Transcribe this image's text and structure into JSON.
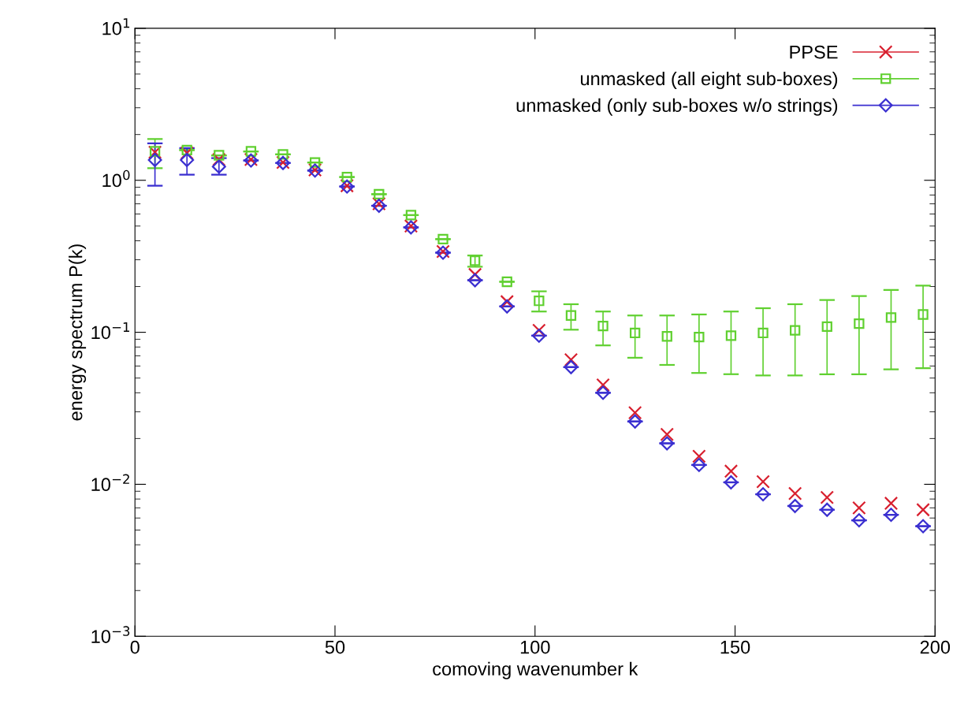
{
  "chart_data": {
    "type": "scatter",
    "xlabel": "comoving wavenumber k",
    "ylabel": "energy spectrum P(k)",
    "log": "y",
    "grid": false,
    "legend": "top right",
    "xlim": [
      0,
      200
    ],
    "xticks": [
      0,
      50,
      100,
      150,
      200
    ],
    "ylim": [
      0.001,
      10
    ],
    "yticks": [
      {
        "value": 0.001,
        "label": "10$^{−3}$"
      },
      {
        "value": 0.01,
        "label": "10$^{−2}$"
      },
      {
        "value": 0.1,
        "label": "10$^{−1}$"
      },
      {
        "value": 1,
        "label": "10$^{0}$"
      },
      {
        "value": 10,
        "label": "10$^{1}$"
      }
    ],
    "x": [
      5,
      13,
      21,
      29,
      37,
      45,
      53,
      61,
      69,
      77,
      85,
      93,
      101,
      109,
      117,
      125,
      133,
      141,
      149,
      157,
      165,
      173,
      181,
      189,
      197
    ],
    "series": [
      {
        "name": "PPSE",
        "color": "#d8202f",
        "marker": "cross",
        "values": [
          1.53,
          1.51,
          1.37,
          1.37,
          1.31,
          1.17,
          0.92,
          0.7,
          0.5,
          0.34,
          0.24,
          0.159,
          0.103,
          0.066,
          0.045,
          0.0296,
          0.0213,
          0.0153,
          0.0122,
          0.0104,
          0.0087,
          0.0082,
          0.007,
          0.0075,
          0.0068
        ]
      },
      {
        "name": "unmasked (all eight sub-boxes)",
        "color": "#60d030",
        "marker": "square",
        "values": [
          1.55,
          1.58,
          1.46,
          1.55,
          1.48,
          1.31,
          1.05,
          0.81,
          0.59,
          0.41,
          0.296,
          0.215,
          0.161,
          0.129,
          0.11,
          0.099,
          0.094,
          0.093,
          0.095,
          0.099,
          0.103,
          0.109,
          0.114,
          0.125,
          0.131
        ],
        "errors": [
          [
            1.2,
            1.87
          ],
          null,
          null,
          null,
          null,
          null,
          null,
          null,
          null,
          null,
          [
            0.27,
            0.32
          ],
          null,
          [
            0.137,
            0.186
          ],
          [
            0.104,
            0.153
          ],
          [
            0.082,
            0.137
          ],
          [
            0.068,
            0.129
          ],
          [
            0.061,
            0.129
          ],
          [
            0.054,
            0.131
          ],
          [
            0.053,
            0.137
          ],
          [
            0.052,
            0.144
          ],
          [
            0.052,
            0.153
          ],
          [
            0.053,
            0.163
          ],
          [
            0.053,
            0.173
          ],
          [
            0.057,
            0.19
          ],
          [
            0.058,
            0.203
          ]
        ]
      },
      {
        "name": "unmasked (only sub-boxes w/o strings)",
        "color": "#3a2fd0",
        "marker": "diamond",
        "values": [
          1.36,
          1.36,
          1.23,
          1.35,
          1.3,
          1.16,
          0.91,
          0.68,
          0.49,
          0.334,
          0.22,
          0.148,
          0.095,
          0.059,
          0.04,
          0.0259,
          0.0186,
          0.0134,
          0.0103,
          0.0086,
          0.0072,
          0.0068,
          0.0058,
          0.0063,
          0.0053
        ],
        "errors": [
          [
            0.92,
            1.75
          ],
          [
            1.09,
            1.63
          ],
          [
            1.09,
            1.4
          ],
          null,
          null,
          null,
          null,
          null,
          null,
          null,
          null,
          null,
          null,
          null,
          null,
          null,
          null,
          null,
          null,
          null,
          null,
          null,
          null,
          null,
          null
        ]
      }
    ]
  }
}
